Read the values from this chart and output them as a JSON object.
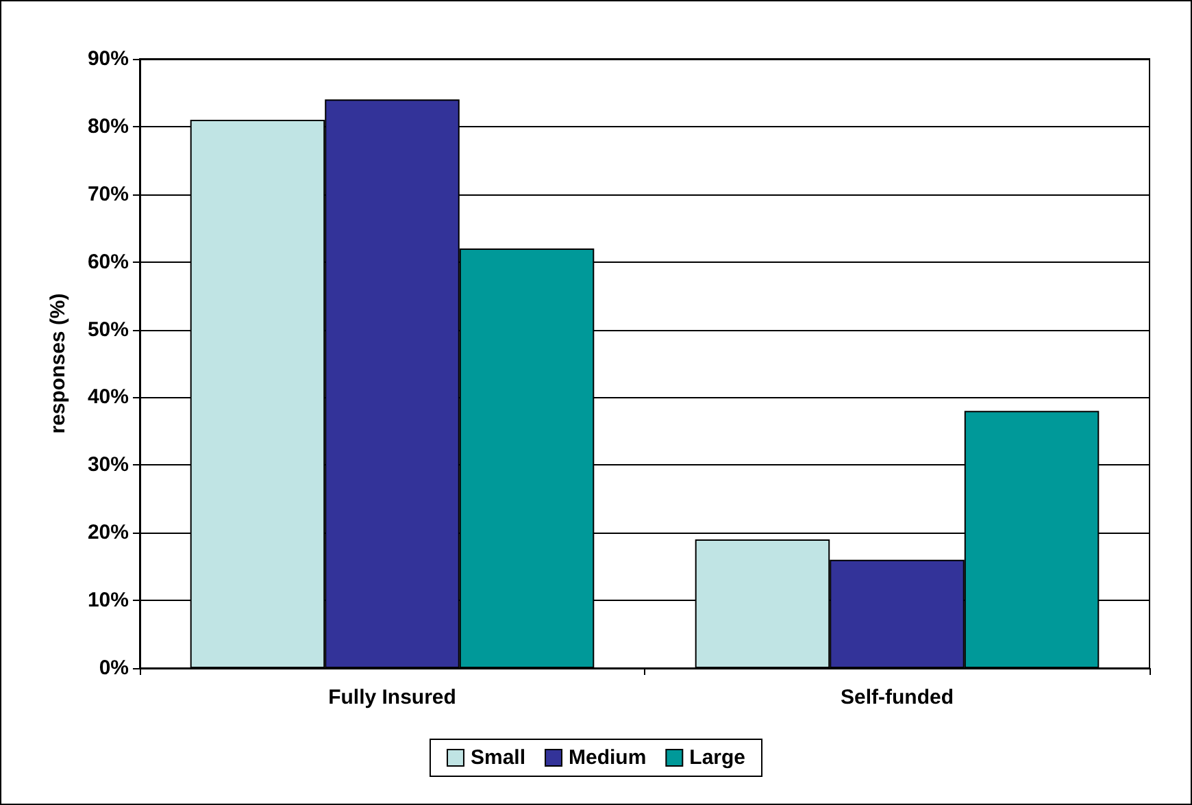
{
  "chart_data": {
    "type": "bar",
    "ylabel": "responses (%)",
    "categories": [
      "Fully Insured",
      "Self-funded"
    ],
    "series": [
      {
        "name": "Small",
        "color": "#c0e4e4",
        "values": [
          81,
          19
        ]
      },
      {
        "name": "Medium",
        "color": "#333399",
        "values": [
          84,
          16
        ]
      },
      {
        "name": "Large",
        "color": "#009999",
        "values": [
          62,
          38
        ]
      }
    ],
    "ylim": [
      0,
      90
    ],
    "yticks": [
      {
        "value": 0,
        "label": "0%"
      },
      {
        "value": 10,
        "label": "10%"
      },
      {
        "value": 20,
        "label": "20%"
      },
      {
        "value": 30,
        "label": "30%"
      },
      {
        "value": 40,
        "label": "40%"
      },
      {
        "value": 50,
        "label": "50%"
      },
      {
        "value": 60,
        "label": "60%"
      },
      {
        "value": 70,
        "label": "70%"
      },
      {
        "value": 80,
        "label": "80%"
      },
      {
        "value": 90,
        "label": "90%"
      }
    ],
    "grid": "y",
    "legend": "bottom"
  }
}
